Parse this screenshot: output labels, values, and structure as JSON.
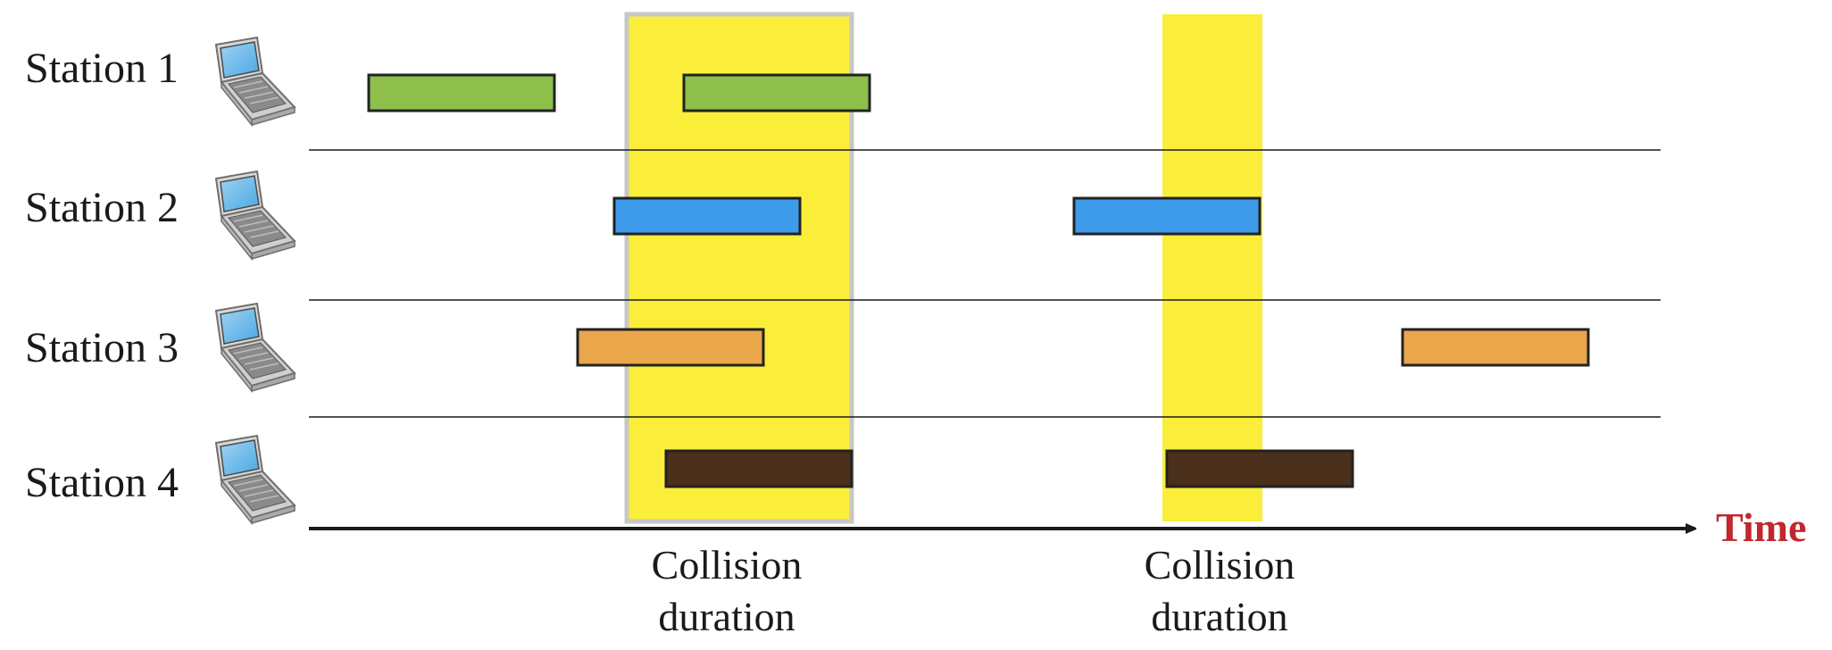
{
  "stations": [
    {
      "label": "Station 1",
      "icon": "laptop-icon"
    },
    {
      "label": "Station 2",
      "icon": "laptop-icon"
    },
    {
      "label": "Station 3",
      "icon": "laptop-icon"
    },
    {
      "label": "Station 4",
      "icon": "laptop-icon"
    }
  ],
  "frames": [
    {
      "station": 1,
      "color": "#8dbf4a"
    },
    {
      "station": 1,
      "color": "#8dbf4a"
    },
    {
      "station": 2,
      "color": "#3d9be9"
    },
    {
      "station": 2,
      "color": "#3d9be9"
    },
    {
      "station": 3,
      "color": "#eaa64a"
    },
    {
      "station": 3,
      "color": "#eaa64a"
    },
    {
      "station": 4,
      "color": "#4a2f1a"
    },
    {
      "station": 4,
      "color": "#4a2f1a"
    }
  ],
  "collisions": [
    {
      "line1": "Collision",
      "line2": "duration",
      "highlight_color": "#fbee3a"
    },
    {
      "line1": "Collision",
      "line2": "duration",
      "highlight_color": "#fbee3a"
    }
  ],
  "axis": {
    "label": "Time",
    "label_color": "#c0282d"
  }
}
